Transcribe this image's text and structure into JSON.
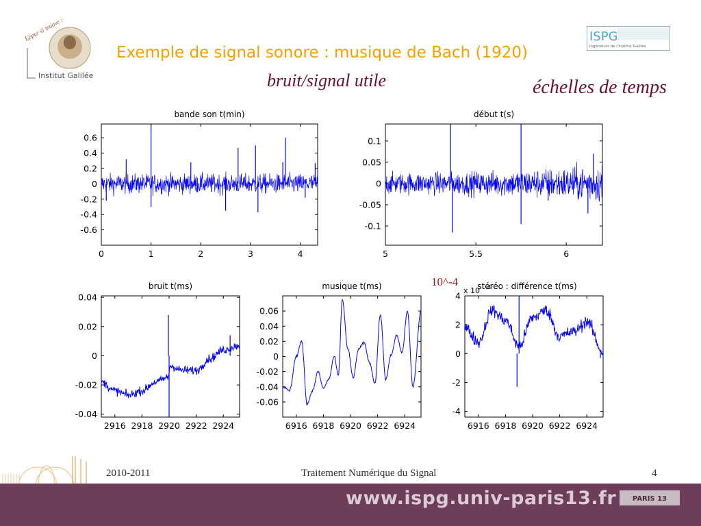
{
  "slide": {
    "title": "Exemple de signal sonore : musique de Bach (1920)",
    "subtitle_left": "bruit/signal utile",
    "subtitle_right": "échelles de temps",
    "annotation": "10^-4",
    "logo_left_text_top": "Eppur si muove !",
    "logo_left_text_bottom": "Institut Galilée",
    "logo_right_title": "ISPG",
    "logo_right_sub": "Ingénieurs de l'Institut Galilée",
    "footer_year": "2010-2011",
    "footer_course": "Traitement Numérique du Signal",
    "footer_page": "4",
    "footer_url": "www.ispg.univ-paris13.fr",
    "footer_univ_logo_text": "PARIS 13",
    "colors": {
      "title": "#f5a000",
      "subtitle": "#6b1035",
      "footer_bar": "#6e3d5a",
      "signal": "#0000ff"
    }
  },
  "chart_data": [
    {
      "id": "c1",
      "type": "line",
      "title": "bande son t(min)",
      "xlabel": "",
      "ylabel": "",
      "xlim": [
        0,
        4.35
      ],
      "ylim": [
        -0.8,
        0.78
      ],
      "xticks": [
        0,
        1,
        2,
        3,
        4
      ],
      "xtick_labels": [
        "0",
        "1",
        "2",
        "3",
        "4"
      ],
      "yticks": [
        -0.6,
        -0.4,
        -0.2,
        0,
        0.2,
        0.4,
        0.6
      ],
      "ytick_labels": [
        "-0.6",
        "-0.4",
        "-0.2",
        "0",
        "0.2",
        "0.4",
        "0.6"
      ],
      "series": [
        {
          "style": "dense_noise",
          "x_range": [
            0,
            4.35
          ],
          "envelope": 0.13,
          "spikes": [
            [
              0.1,
              -0.22
            ],
            [
              0.5,
              0.32
            ],
            [
              1.0,
              0.78
            ],
            [
              1.0,
              -0.3
            ],
            [
              1.8,
              0.28
            ],
            [
              2.5,
              -0.35
            ],
            [
              2.75,
              0.47
            ],
            [
              3.1,
              0.5
            ],
            [
              3.15,
              -0.37
            ],
            [
              3.65,
              0.28
            ],
            [
              3.7,
              0.6
            ],
            [
              4.1,
              -0.18
            ],
            [
              4.3,
              0.27
            ]
          ]
        }
      ]
    },
    {
      "id": "c2",
      "type": "line",
      "title": "début t(s)",
      "xlabel": "",
      "ylabel": "",
      "xlim": [
        5,
        6.2
      ],
      "ylim": [
        -0.145,
        0.14
      ],
      "xticks": [
        5,
        5.5,
        6
      ],
      "xtick_labels": [
        "5",
        "5.5",
        "6"
      ],
      "yticks": [
        -0.1,
        -0.05,
        0,
        0.05,
        0.1
      ],
      "ytick_labels": [
        "-0.1",
        "-0.05",
        "0",
        "0.05",
        "0.1"
      ],
      "series": [
        {
          "style": "dense_noise",
          "x_range": [
            5,
            6.2
          ],
          "envelope": 0.025,
          "envelope_end": 0.045,
          "spikes": [
            [
              5.36,
              0.14
            ],
            [
              5.37,
              -0.115
            ],
            [
              5.75,
              0.14
            ],
            [
              5.75,
              -0.095
            ],
            [
              5.9,
              -0.04
            ],
            [
              6.12,
              -0.07
            ],
            [
              6.15,
              0.07
            ]
          ]
        }
      ]
    },
    {
      "id": "c3",
      "type": "line",
      "title": "bruit t(ms)",
      "xlabel": "",
      "ylabel": "",
      "xlim": [
        2915,
        2925.2
      ],
      "ylim": [
        -0.042,
        0.041
      ],
      "xticks": [
        2916,
        2918,
        2920,
        2922,
        2924
      ],
      "xtick_labels": [
        "2916",
        "2918",
        "2920",
        "2922",
        "2924"
      ],
      "yticks": [
        -0.04,
        -0.02,
        0,
        0.02,
        0.04
      ],
      "ytick_labels": [
        "-0.04",
        "-0.02",
        "0",
        "0.02",
        "0.04"
      ],
      "series": [
        {
          "style": "noisy_trend",
          "x": [
            2915,
            2916,
            2917,
            2918,
            2919,
            2919.9,
            2920.1,
            2921,
            2922,
            2923,
            2924,
            2925.2
          ],
          "y": [
            -0.018,
            -0.024,
            -0.027,
            -0.024,
            -0.018,
            -0.015,
            -0.007,
            -0.01,
            -0.01,
            -0.002,
            0.004,
            0.007
          ],
          "noise": 0.003,
          "spikes": [
            [
              2919.95,
              0.028
            ],
            [
              2920.0,
              -0.042
            ],
            [
              2924.5,
              0.014
            ]
          ]
        }
      ]
    },
    {
      "id": "c4",
      "type": "line",
      "title": "musique t(ms)",
      "xlabel": "",
      "ylabel": "",
      "xlim": [
        6915,
        6925.2
      ],
      "ylim": [
        -0.08,
        0.08
      ],
      "xticks": [
        6916,
        6918,
        6920,
        6922,
        6924
      ],
      "xtick_labels": [
        "6916",
        "6918",
        "6920",
        "6922",
        "6924"
      ],
      "yticks": [
        -0.06,
        -0.04,
        -0.02,
        0,
        0.02,
        0.04,
        0.06
      ],
      "ytick_labels": [
        "-0.06",
        "-0.04",
        "-0.02",
        "0",
        "0.02",
        "0.04",
        "0.06"
      ],
      "series": [
        {
          "style": "smooth",
          "x": [
            6915,
            6915.5,
            6916,
            6916.4,
            6916.8,
            6917.2,
            6917.6,
            6918,
            6918.4,
            6918.8,
            6919.1,
            6919.4,
            6919.8,
            6920.2,
            6920.6,
            6921,
            6921.4,
            6921.8,
            6922.2,
            6922.6,
            6923,
            6923.4,
            6923.8,
            6924.2,
            6924.6,
            6925.2
          ],
          "y": [
            -0.04,
            -0.045,
            0.0,
            0.02,
            -0.063,
            -0.045,
            -0.02,
            -0.042,
            -0.03,
            0.0,
            -0.025,
            0.075,
            0.01,
            -0.028,
            0.01,
            0.018,
            -0.008,
            -0.035,
            0.055,
            -0.03,
            0.002,
            0.028,
            0.005,
            0.06,
            -0.04,
            0.06
          ],
          "noise": 0.0015
        }
      ]
    },
    {
      "id": "c5",
      "type": "line",
      "title": "stéréo : différence t(ms)",
      "xlabel": "",
      "ylabel": "",
      "multiplier_label": "x 10",
      "multiplier_exp": "-4",
      "xlim": [
        6915,
        6925.2
      ],
      "ylim": [
        -4.4,
        4.0
      ],
      "xticks": [
        6916,
        6918,
        6920,
        6922,
        6924
      ],
      "xtick_labels": [
        "6916",
        "6918",
        "6920",
        "6922",
        "6924"
      ],
      "yticks": [
        -4,
        -2,
        0,
        2,
        4
      ],
      "ytick_labels": [
        "-4",
        "-2",
        "0",
        "2",
        "4"
      ],
      "series": [
        {
          "style": "noisy_trend",
          "x": [
            6915,
            6916,
            6917,
            6918,
            6919,
            6920,
            6921,
            6922,
            6923,
            6924,
            6925.2
          ],
          "y": [
            1.8,
            0.8,
            3.0,
            2.3,
            0.5,
            2.5,
            3.0,
            1.2,
            1.5,
            2.2,
            0.1
          ],
          "noise": 0.45,
          "spikes": [
            [
              6918.85,
              -2.3
            ],
            [
              6919.0,
              4.0
            ],
            [
              6916.4,
              0.0
            ],
            [
              6925.0,
              -0.3
            ]
          ]
        }
      ]
    }
  ]
}
